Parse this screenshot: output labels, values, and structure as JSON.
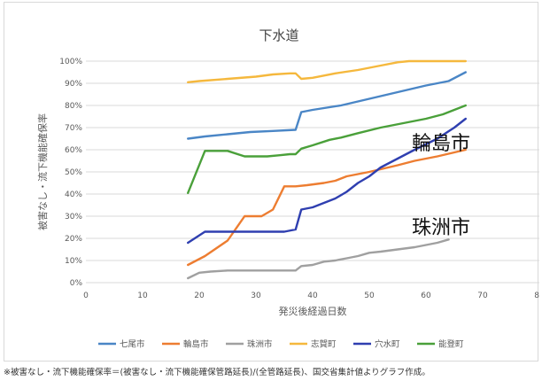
{
  "chart_data": {
    "type": "line",
    "title": "下水道",
    "xlabel": "発災後経過日数",
    "ylabel": "被害なし・流下機能確保率",
    "xlim": [
      0,
      80
    ],
    "ylim": [
      0,
      100
    ],
    "x_ticks": [
      "0",
      "10",
      "20",
      "30",
      "40",
      "50",
      "60",
      "70",
      "80"
    ],
    "y_ticks": [
      "0%",
      "10%",
      "20%",
      "30%",
      "40%",
      "50%",
      "60%",
      "70%",
      "80%",
      "90%",
      "100%"
    ],
    "grid": true,
    "legend_position": "bottom",
    "series": [
      {
        "name": "七尾市",
        "color": "#4a86c6",
        "points": [
          [
            18,
            65
          ],
          [
            21,
            66
          ],
          [
            25,
            67
          ],
          [
            29,
            68
          ],
          [
            33,
            68.5
          ],
          [
            37,
            69
          ],
          [
            38,
            77
          ],
          [
            40,
            78
          ],
          [
            45,
            80
          ],
          [
            50,
            83
          ],
          [
            55,
            86
          ],
          [
            60,
            89
          ],
          [
            64,
            91
          ],
          [
            67,
            95
          ]
        ]
      },
      {
        "name": "輪島市",
        "color": "#ed7d31",
        "points": [
          [
            18,
            8
          ],
          [
            21,
            12
          ],
          [
            25,
            19
          ],
          [
            28,
            30
          ],
          [
            31,
            30
          ],
          [
            33,
            33
          ],
          [
            35,
            43.5
          ],
          [
            37,
            43.5
          ],
          [
            39,
            44
          ],
          [
            42,
            45
          ],
          [
            44,
            46
          ],
          [
            46,
            48
          ],
          [
            50,
            50
          ],
          [
            55,
            53
          ],
          [
            58,
            55
          ],
          [
            62,
            57
          ],
          [
            67,
            60
          ]
        ]
      },
      {
        "name": "珠洲市",
        "color": "#a0a0a0",
        "points": [
          [
            18,
            2
          ],
          [
            20,
            4.5
          ],
          [
            22,
            5
          ],
          [
            25,
            5.5
          ],
          [
            30,
            5.5
          ],
          [
            37,
            5.5
          ],
          [
            38,
            7.5
          ],
          [
            40,
            8
          ],
          [
            42,
            9.5
          ],
          [
            44,
            10
          ],
          [
            46,
            11
          ],
          [
            48,
            12
          ],
          [
            50,
            13.5
          ],
          [
            52,
            14
          ],
          [
            55,
            15
          ],
          [
            58,
            16
          ],
          [
            62,
            18
          ],
          [
            64,
            19.5
          ]
        ]
      },
      {
        "name": "志賀町",
        "color": "#f5b83d",
        "points": [
          [
            18,
            90.5
          ],
          [
            20,
            91
          ],
          [
            25,
            92
          ],
          [
            30,
            93
          ],
          [
            33,
            94
          ],
          [
            36,
            94.5
          ],
          [
            37,
            94.5
          ],
          [
            38,
            92
          ],
          [
            40,
            92.5
          ],
          [
            44,
            94.5
          ],
          [
            48,
            96
          ],
          [
            52,
            98
          ],
          [
            55,
            99.5
          ],
          [
            57,
            100
          ],
          [
            67,
            100
          ]
        ]
      },
      {
        "name": "穴水町",
        "color": "#2f3fb0",
        "points": [
          [
            18,
            18
          ],
          [
            21,
            23
          ],
          [
            25,
            23
          ],
          [
            30,
            23
          ],
          [
            35,
            23
          ],
          [
            37,
            24
          ],
          [
            38,
            33
          ],
          [
            40,
            34
          ],
          [
            42,
            36
          ],
          [
            44,
            38
          ],
          [
            46,
            41
          ],
          [
            48,
            45
          ],
          [
            50,
            48
          ],
          [
            52,
            52
          ],
          [
            55,
            56
          ],
          [
            58,
            60
          ],
          [
            62,
            65
          ],
          [
            65,
            70
          ],
          [
            67,
            74
          ]
        ]
      },
      {
        "name": "能登町",
        "color": "#4aa03a",
        "points": [
          [
            18,
            40.5
          ],
          [
            21,
            59.5
          ],
          [
            25,
            59.5
          ],
          [
            28,
            57
          ],
          [
            32,
            57
          ],
          [
            34,
            57.5
          ],
          [
            36,
            58
          ],
          [
            37,
            58
          ],
          [
            38,
            60.5
          ],
          [
            40,
            62
          ],
          [
            43,
            64.5
          ],
          [
            45,
            65.5
          ],
          [
            48,
            67.5
          ],
          [
            52,
            70
          ],
          [
            56,
            72
          ],
          [
            60,
            74
          ],
          [
            63,
            76
          ],
          [
            66,
            79
          ],
          [
            67,
            80
          ]
        ]
      }
    ],
    "annotations": [
      {
        "text": "輪島市",
        "x": 57.5,
        "y": 60
      },
      {
        "text": "珠洲市",
        "x": 57.5,
        "y": 22
      }
    ]
  },
  "footnote": "※被害なし・流下機能確保率＝(被害なし・流下機能確保管路延長)/(全管路延長)、国交省集計値よりグラフ作成。"
}
